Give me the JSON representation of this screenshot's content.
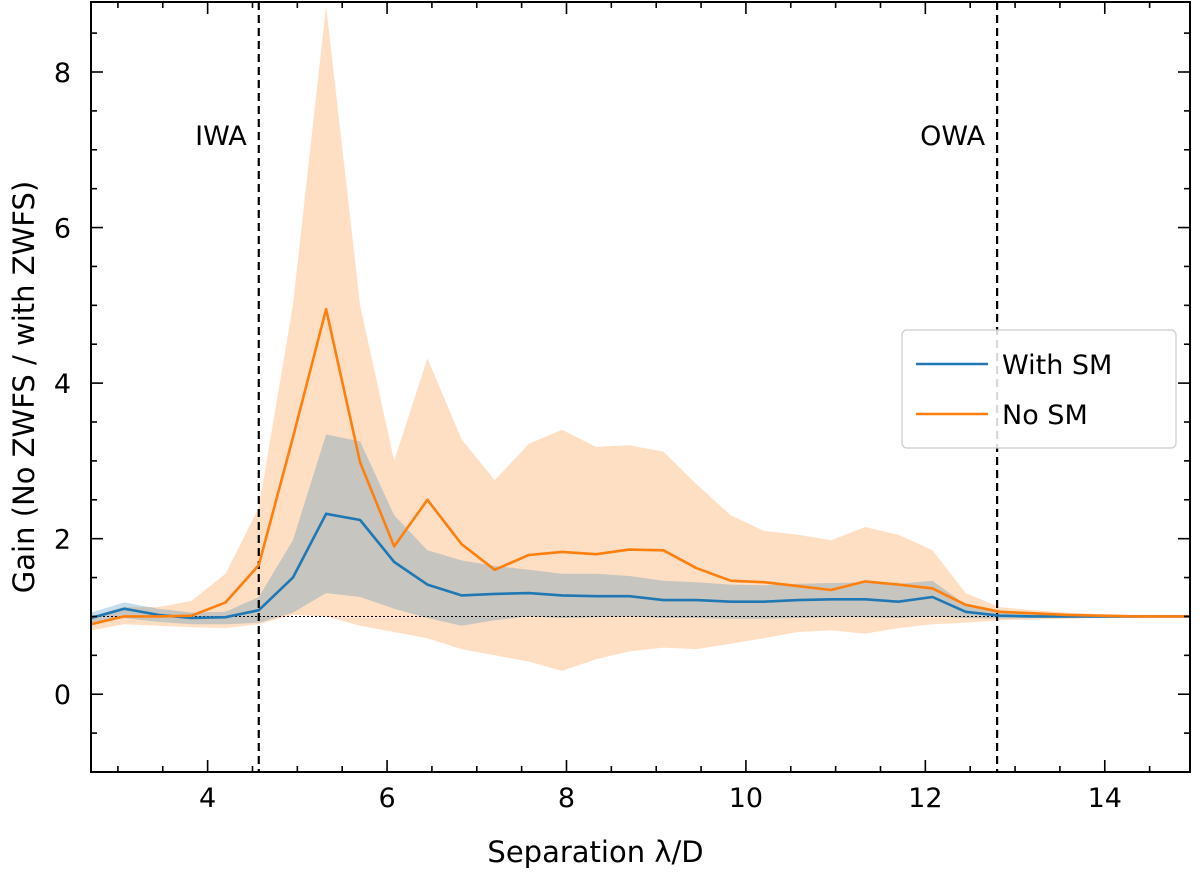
{
  "chart_data": {
    "type": "line",
    "title": "",
    "xlabel": "Separation λ/D",
    "ylabel": "Gain (No ZWFS / with ZWFS)",
    "xlim": [
      2.7,
      14.95
    ],
    "ylim": [
      -1,
      8.9
    ],
    "xticks": [
      4,
      6,
      8,
      10,
      12,
      14
    ],
    "yticks": [
      0,
      2,
      4,
      6,
      8
    ],
    "grid": false,
    "legend_position": "center-right",
    "reference_line": {
      "y": 1.0,
      "style": "dotted",
      "color": "#000000"
    },
    "vertical_lines": [
      {
        "x": 4.57,
        "label": "IWA",
        "style": "dashed"
      },
      {
        "x": 12.8,
        "label": "OWA",
        "style": "dashed"
      }
    ],
    "x": [
      2.7,
      3.07,
      3.45,
      3.82,
      4.2,
      4.57,
      4.95,
      5.32,
      5.7,
      6.08,
      6.45,
      6.83,
      7.2,
      7.58,
      7.95,
      8.33,
      8.7,
      9.08,
      9.45,
      9.83,
      10.2,
      10.58,
      10.95,
      11.33,
      11.7,
      12.08,
      12.45,
      12.83,
      13.2,
      13.58,
      13.95,
      14.33,
      14.7,
      14.95
    ],
    "series": [
      {
        "name": "With SM",
        "color": "#1f77b4",
        "band_color": "#1f77b4",
        "band_opacity": 0.25,
        "values": [
          0.98,
          1.1,
          1.02,
          0.98,
          0.99,
          1.08,
          1.5,
          2.32,
          2.24,
          1.7,
          1.41,
          1.27,
          1.29,
          1.3,
          1.27,
          1.26,
          1.26,
          1.21,
          1.21,
          1.19,
          1.19,
          1.21,
          1.22,
          1.22,
          1.19,
          1.25,
          1.06,
          1.01,
          1.0,
          1.0,
          1.0,
          1.0,
          1.0,
          1.0
        ],
        "lower": [
          0.9,
          0.98,
          0.93,
          0.9,
          0.9,
          0.92,
          1.05,
          1.3,
          1.25,
          1.1,
          0.98,
          0.88,
          0.95,
          1.0,
          0.98,
          0.99,
          1.0,
          0.98,
          0.98,
          0.97,
          0.97,
          0.98,
          0.99,
          0.99,
          0.98,
          1.0,
          0.98,
          0.97,
          0.98,
          0.98,
          0.98,
          0.98,
          0.99,
          0.99
        ],
        "upper": [
          1.05,
          1.18,
          1.1,
          1.05,
          1.06,
          1.25,
          1.98,
          3.34,
          3.25,
          2.3,
          1.85,
          1.72,
          1.65,
          1.6,
          1.55,
          1.55,
          1.52,
          1.46,
          1.44,
          1.41,
          1.4,
          1.42,
          1.43,
          1.44,
          1.42,
          1.46,
          1.15,
          1.05,
          1.03,
          1.02,
          1.02,
          1.02,
          1.02,
          1.02
        ]
      },
      {
        "name": "No SM",
        "color": "#ff7f0e",
        "band_color": "#ff7f0e",
        "band_opacity": 0.25,
        "values": [
          0.9,
          1.0,
          1.0,
          1.01,
          1.18,
          1.66,
          3.3,
          4.95,
          2.98,
          1.9,
          2.5,
          1.93,
          1.6,
          1.79,
          1.83,
          1.8,
          1.86,
          1.85,
          1.62,
          1.46,
          1.44,
          1.39,
          1.34,
          1.45,
          1.41,
          1.36,
          1.15,
          1.06,
          1.04,
          1.02,
          1.01,
          1.0,
          1.0,
          1.0
        ],
        "lower": [
          0.82,
          0.9,
          0.88,
          0.86,
          0.85,
          0.9,
          1.02,
          1.0,
          0.88,
          0.8,
          0.72,
          0.58,
          0.5,
          0.42,
          0.3,
          0.45,
          0.55,
          0.6,
          0.58,
          0.65,
          0.72,
          0.8,
          0.82,
          0.78,
          0.85,
          0.9,
          0.92,
          0.95,
          0.96,
          0.97,
          0.98,
          0.98,
          0.99,
          0.99
        ],
        "upper": [
          1.0,
          1.12,
          1.12,
          1.2,
          1.55,
          2.4,
          5.0,
          8.85,
          5.0,
          3.0,
          4.32,
          3.28,
          2.75,
          3.22,
          3.4,
          3.18,
          3.2,
          3.12,
          2.7,
          2.3,
          2.1,
          2.05,
          1.98,
          2.15,
          2.05,
          1.85,
          1.3,
          1.12,
          1.08,
          1.05,
          1.03,
          1.02,
          1.02,
          1.02
        ]
      }
    ]
  }
}
